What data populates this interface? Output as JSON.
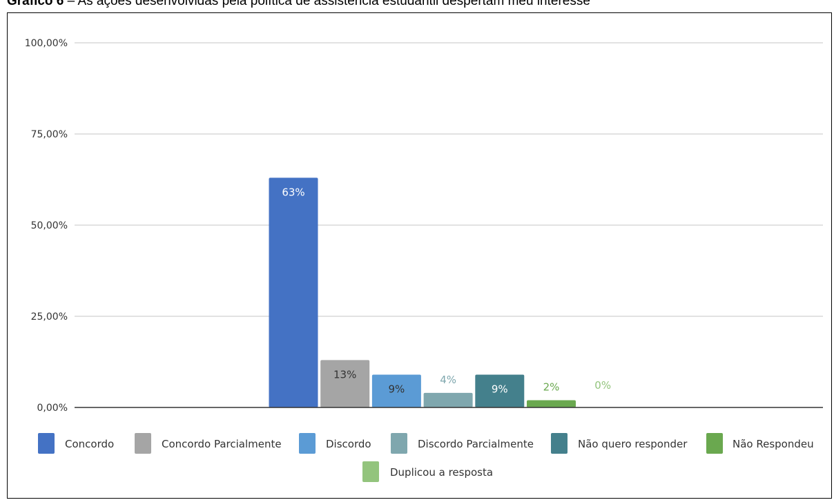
{
  "caption": {
    "prefix": "Gráfico 6",
    "text": "As ações desenvolvidas pela política de assistência estudantil despertam meu interesse"
  },
  "chart_data": {
    "type": "bar",
    "title": "",
    "xlabel": "",
    "ylabel": "",
    "ylim": [
      0,
      100
    ],
    "y_ticks": [
      "0,00%",
      "25,00%",
      "50,00%",
      "75,00%",
      "100,00%"
    ],
    "grid": true,
    "legend_position": "bottom",
    "series": [
      {
        "name": "Concordo",
        "value": 63,
        "label": "63%",
        "color": "#4472C4",
        "label_color": "#ffffff",
        "label_inside": true
      },
      {
        "name": "Concordo Parcialmente",
        "value": 13,
        "label": "13%",
        "color": "#A5A5A5",
        "label_color": "#333333",
        "label_inside": true
      },
      {
        "name": "Discordo",
        "value": 9,
        "label": "9%",
        "color": "#5B9BD5",
        "label_color": "#333333",
        "label_inside": true
      },
      {
        "name": "Discordo Parcialmente",
        "value": 4,
        "label": "4%",
        "color": "#7FA7AE",
        "label_color": "#7FA7AE",
        "label_inside": false
      },
      {
        "name": "Não quero responder",
        "value": 9,
        "label": "9%",
        "color": "#44808C",
        "label_color": "#ffffff",
        "label_inside": true
      },
      {
        "name": "Não Respondeu",
        "value": 2,
        "label": "2%",
        "color": "#6AA84F",
        "label_color": "#6AA84F",
        "label_inside": false
      },
      {
        "name": "Duplicou a resposta",
        "value": 0,
        "label": "0%",
        "color": "#93C47D",
        "label_color": "#93C47D",
        "label_inside": false
      }
    ]
  }
}
